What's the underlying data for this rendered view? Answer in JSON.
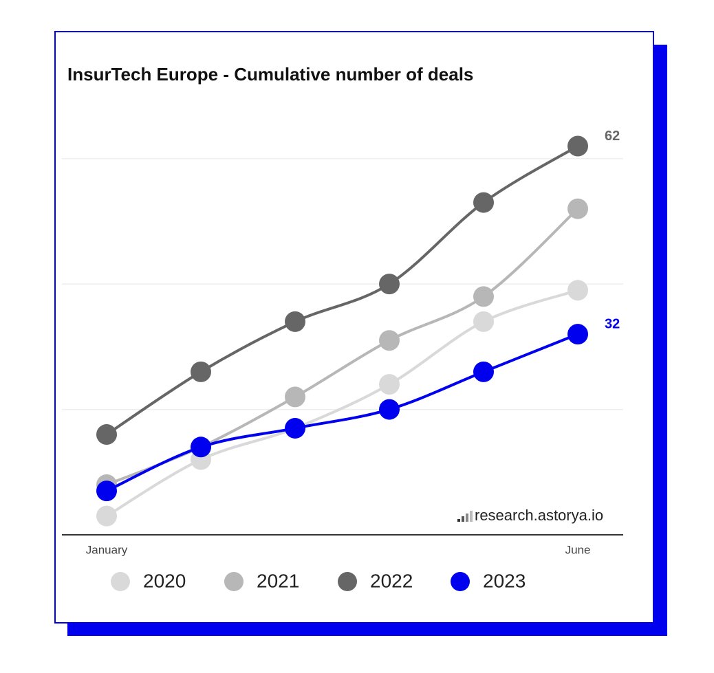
{
  "chart_data": {
    "type": "line",
    "title": "InsurTech Europe - Cumulative number of deals",
    "categories": [
      "January",
      null,
      null,
      null,
      null,
      "June"
    ],
    "series": [
      {
        "name": "2020",
        "color": "#d9d9d9",
        "values": [
          3,
          12,
          17,
          24,
          34,
          39
        ]
      },
      {
        "name": "2021",
        "color": "#b7b7b7",
        "values": [
          8,
          14,
          22,
          31,
          38,
          52
        ]
      },
      {
        "name": "2022",
        "color": "#666666",
        "values": [
          16,
          26,
          34,
          40,
          53,
          62
        ]
      },
      {
        "name": "2023",
        "color": "#0000ee",
        "values": [
          7,
          14,
          17,
          20,
          26,
          32
        ]
      }
    ],
    "ylim": [
      0,
      66
    ],
    "yticks": [
      0,
      20,
      40,
      60
    ],
    "grid": true,
    "annotations": [
      "research.astorya.io"
    ]
  }
}
